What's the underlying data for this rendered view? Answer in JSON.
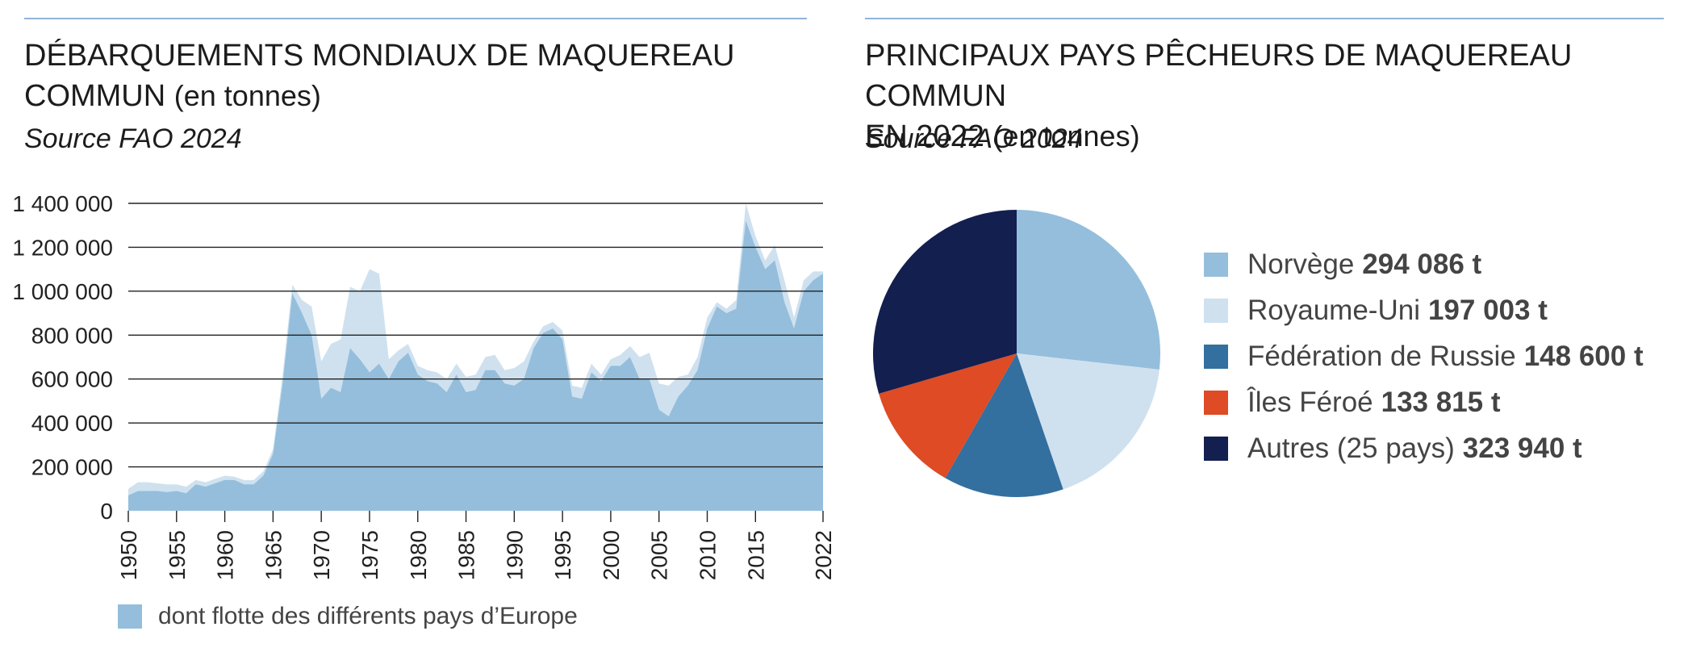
{
  "left_panel": {
    "title": "DÉBARQUEMENTS MONDIAUX DE MAQUEREAU COMMUN",
    "title_line1": "DÉBARQUEMENTS MONDIAUX DE MAQUEREAU",
    "title_line2": "COMMUN",
    "unit": "(en tonnes)",
    "source": "Source FAO 2024",
    "legend_label": "dont flotte des différents pays d’Europe"
  },
  "right_panel": {
    "title": "PRINCIPAUX PAYS PÊCHEURS DE MAQUEREAU COMMUN EN 2022",
    "title_line1": "PRINCIPAUX PAYS PÊCHEURS DE MAQUEREAU COMMUN",
    "title_line2": "EN 2022",
    "unit": "(en tonnes)",
    "source": "Source FAO 2024"
  },
  "colors": {
    "world": "#cfe1ef",
    "europe": "#94bedc",
    "rule": "#8fb4d9",
    "norway": "#94bedc",
    "uk": "#cfe1ef",
    "russia": "#336f9f",
    "faroe": "#de4b24",
    "others": "#121f4f"
  },
  "chart_data": [
    {
      "type": "area",
      "ylim": [
        0,
        1400000
      ],
      "y_ticks": [
        0,
        200000,
        400000,
        600000,
        800000,
        1000000,
        1200000,
        1400000
      ],
      "y_tick_labels": [
        "0",
        "200 000",
        "400 000",
        "600 000",
        "800 000",
        "1 000 000",
        "1 200 000",
        "1 400 000"
      ],
      "x_tick_labels": [
        "1950",
        "1955",
        "1960",
        "1965",
        "1970",
        "1975",
        "1980",
        "1985",
        "1990",
        "1995",
        "2000",
        "2005",
        "2010",
        "2015",
        "2022"
      ],
      "grid": true,
      "x": [
        1950,
        1951,
        1952,
        1953,
        1954,
        1955,
        1956,
        1957,
        1958,
        1959,
        1960,
        1961,
        1962,
        1963,
        1964,
        1965,
        1966,
        1967,
        1968,
        1969,
        1970,
        1971,
        1972,
        1973,
        1974,
        1975,
        1976,
        1977,
        1978,
        1979,
        1980,
        1981,
        1982,
        1983,
        1984,
        1985,
        1986,
        1987,
        1988,
        1989,
        1990,
        1991,
        1992,
        1993,
        1994,
        1995,
        1996,
        1997,
        1998,
        1999,
        2000,
        2001,
        2002,
        2003,
        2004,
        2005,
        2006,
        2007,
        2008,
        2009,
        2010,
        2011,
        2012,
        2013,
        2014,
        2015,
        2016,
        2017,
        2018,
        2019,
        2020,
        2021,
        2022
      ],
      "series": [
        {
          "name": "",
          "values": [
            100000,
            130000,
            130000,
            125000,
            120000,
            120000,
            110000,
            140000,
            130000,
            145000,
            160000,
            155000,
            140000,
            140000,
            180000,
            280000,
            620000,
            1030000,
            960000,
            930000,
            680000,
            760000,
            780000,
            1020000,
            1000000,
            1100000,
            1080000,
            690000,
            730000,
            760000,
            660000,
            640000,
            630000,
            600000,
            670000,
            610000,
            620000,
            700000,
            710000,
            640000,
            650000,
            680000,
            770000,
            840000,
            860000,
            820000,
            570000,
            560000,
            670000,
            620000,
            690000,
            710000,
            750000,
            700000,
            720000,
            580000,
            570000,
            610000,
            620000,
            700000,
            880000,
            950000,
            920000,
            960000,
            1400000,
            1250000,
            1140000,
            1210000,
            1050000,
            880000,
            1050000,
            1090000,
            1090000
          ]
        },
        {
          "name": "dont flotte des différents pays d’Europe",
          "values": [
            70000,
            90000,
            90000,
            90000,
            85000,
            90000,
            80000,
            120000,
            110000,
            125000,
            140000,
            140000,
            120000,
            120000,
            160000,
            260000,
            580000,
            990000,
            900000,
            800000,
            510000,
            560000,
            540000,
            740000,
            690000,
            630000,
            670000,
            600000,
            680000,
            720000,
            620000,
            590000,
            580000,
            540000,
            620000,
            540000,
            550000,
            640000,
            640000,
            580000,
            570000,
            600000,
            740000,
            810000,
            830000,
            780000,
            520000,
            510000,
            630000,
            590000,
            660000,
            660000,
            700000,
            600000,
            600000,
            460000,
            430000,
            520000,
            570000,
            640000,
            830000,
            930000,
            900000,
            920000,
            1320000,
            1200000,
            1100000,
            1140000,
            950000,
            830000,
            1000000,
            1050000,
            1080000
          ]
        }
      ]
    },
    {
      "type": "pie",
      "categories": [
        "Norvège",
        "Royaume-Uni",
        "Fédération de Russie",
        "Îles Féroé",
        "Autres (25 pays)"
      ],
      "values": [
        294086,
        197003,
        148600,
        133815,
        323940
      ],
      "value_labels": [
        "294 086 t",
        "197 003 t",
        "148 600 t",
        "133 815 t",
        "323 940 t"
      ],
      "colors": [
        "#94bedc",
        "#cfe1ef",
        "#336f9f",
        "#de4b24",
        "#121f4f"
      ],
      "legend_position": "right"
    }
  ]
}
